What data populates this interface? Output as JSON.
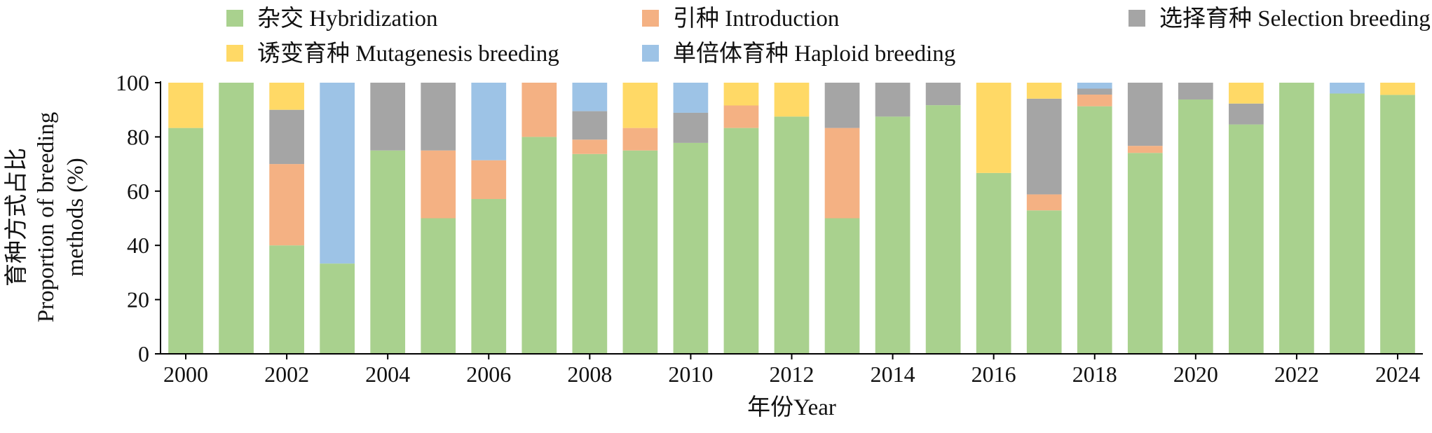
{
  "chart_data": {
    "type": "bar",
    "stacked": true,
    "xlabel": "年份Year",
    "ylabel_lines": [
      "育种方式占比",
      "Proportion of breeding",
      "methods (%)"
    ],
    "ylim": [
      0,
      100
    ],
    "yticks": [
      0,
      20,
      40,
      60,
      80,
      100
    ],
    "grid": false,
    "legend_position": "top",
    "categories": [
      "2000",
      "2001",
      "2002",
      "2003",
      "2004",
      "2005",
      "2006",
      "2007",
      "2008",
      "2009",
      "2010",
      "2011",
      "2012",
      "2013",
      "2014",
      "2015",
      "2016",
      "2017",
      "2018",
      "2019",
      "2020",
      "2021",
      "2022",
      "2023",
      "2024"
    ],
    "xtick_labels": [
      "2000",
      "",
      "2002",
      "",
      "2004",
      "",
      "2006",
      "",
      "2008",
      "",
      "2010",
      "",
      "2012",
      "",
      "2014",
      "",
      "2016",
      "",
      "2018",
      "",
      "2020",
      "",
      "2022",
      "",
      "2024"
    ],
    "series": [
      {
        "name": "杂交 Hybridization",
        "color": "#a9d18e",
        "values": [
          83.3,
          100,
          40,
          33.3,
          75,
          50,
          57.1,
          80,
          73.7,
          75,
          77.8,
          83.3,
          87.5,
          50,
          87.5,
          91.7,
          66.7,
          52.9,
          91.3,
          74.1,
          93.8,
          84.6,
          100,
          96,
          95.5
        ]
      },
      {
        "name": "引种 Introduction",
        "color": "#f4b183",
        "values": [
          0,
          0,
          30,
          0,
          0,
          25,
          14.3,
          20,
          5.3,
          8.3,
          0,
          8.3,
          0,
          33.3,
          0,
          0,
          0,
          5.9,
          4.3,
          2.6,
          0,
          0,
          0,
          0,
          0
        ]
      },
      {
        "name": "选择育种 Selection breeding",
        "color": "#a5a5a5",
        "values": [
          0,
          0,
          20,
          0,
          25,
          25,
          0,
          0,
          10.5,
          0,
          11.1,
          0,
          0,
          16.7,
          12.5,
          8.3,
          0,
          35.3,
          2.2,
          23.3,
          6.2,
          7.7,
          0,
          0,
          0
        ]
      },
      {
        "name": "诱变育种 Mutagenesis breeding",
        "color": "#ffd966",
        "values": [
          16.7,
          0,
          10,
          0,
          0,
          0,
          0,
          0,
          0,
          16.7,
          0,
          8.4,
          12.5,
          0,
          0,
          0,
          33.3,
          5.9,
          0,
          0,
          0,
          7.7,
          0,
          0,
          4.5
        ]
      },
      {
        "name": "单倍体育种 Haploid breeding",
        "color": "#9dc3e6",
        "values": [
          0,
          0,
          0,
          66.7,
          0,
          0,
          28.6,
          0,
          10.5,
          0,
          11.1,
          0,
          0,
          0,
          0,
          0,
          0,
          0,
          2.2,
          0,
          0,
          0,
          0,
          4,
          0
        ]
      }
    ]
  }
}
